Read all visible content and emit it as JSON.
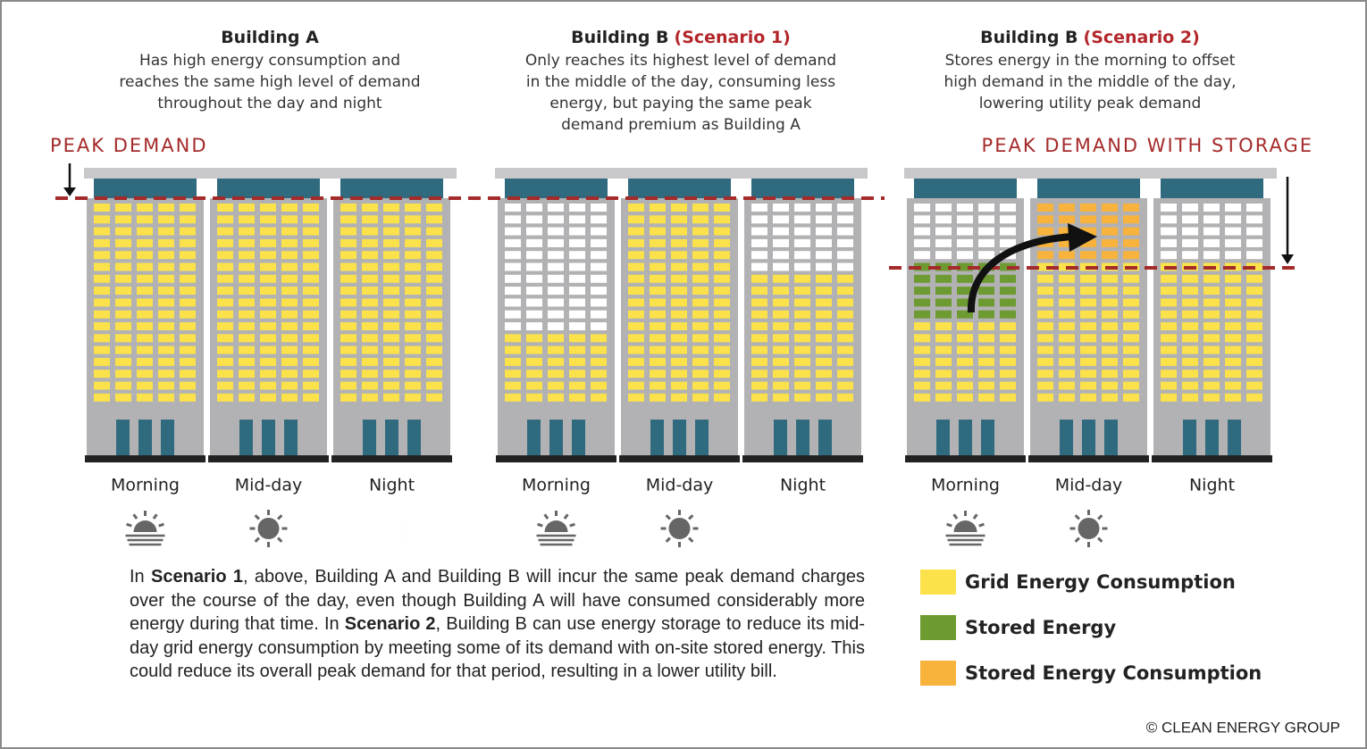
{
  "peak_labels": [
    "PEAK DEMAND",
    "PEAK DEMAND WITH STORAGE"
  ],
  "panels": [
    {
      "title": "Building A",
      "description": [
        "Has high energy consumption and",
        "reaches the same high level of demand",
        "throughout the day and night"
      ],
      "periods": [
        "Morning",
        "Mid-day",
        "Night"
      ]
    },
    {
      "title": "Building B",
      "title_note": "(Scenario 1)",
      "description": [
        "Only reaches its highest level of demand",
        "in the middle of the day, consuming less",
        "energy, but paying the same peak",
        "demand premium as Building A"
      ],
      "periods": [
        "Morning",
        "Mid-day",
        "Night"
      ]
    },
    {
      "title": "Building B",
      "title_note": "(Scenario 2)",
      "description": [
        "Stores energy in the morning to offset",
        "high demand in the middle of the day,",
        "lowering utility peak demand"
      ],
      "periods": [
        "Morning",
        "Mid-day",
        "Night"
      ]
    }
  ],
  "paragraph": [
    {
      "text": "In "
    },
    {
      "text": "Scenario 1",
      "bold": true
    },
    {
      "text": ", above, Building A and Building B will incur the same peak demand charges over the course of the day, even though Building A will have consumed considerably more energy during that time. In "
    },
    {
      "text": "Scenario 2",
      "bold": true
    },
    {
      "text": ", Building B can use energy storage to reduce its mid-day grid energy consumption by meeting some of its demand with on-site stored energy. This could reduce its overall peak demand for that period, resulting in a lower utility bill."
    }
  ],
  "legend": [
    {
      "name": "Grid Energy Consumption",
      "color": "#fbe24a"
    },
    {
      "name": "Stored Energy",
      "color": "#6e9b31"
    },
    {
      "name": "Stored Energy Consumption",
      "color": "#f8b33d"
    }
  ],
  "credit": "© CLEAN ENERGY GROUP"
}
